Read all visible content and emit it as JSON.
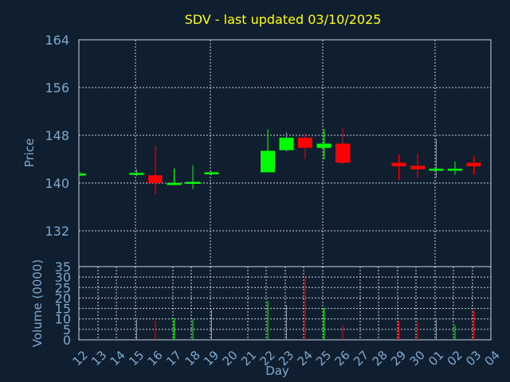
{
  "colors": {
    "background": "#0f1f30",
    "text": "#7fa8cc",
    "title": "#ffff00",
    "grid": "#c8d2dc",
    "up": "#00ff00",
    "down": "#ff0000"
  },
  "chart_data": {
    "type": "candlestick",
    "title": "SDV - last updated 03/10/2025",
    "xlabel": "Day",
    "grid": true,
    "x_ticks": [
      "12",
      "13",
      "14",
      "15",
      "16",
      "17",
      "18",
      "19",
      "20",
      "21",
      "22",
      "23",
      "24",
      "25",
      "26",
      "27",
      "28",
      "29",
      "30",
      "01",
      "02",
      "03",
      "04"
    ],
    "price": {
      "ylabel": "Price",
      "ylim": [
        126,
        164
      ],
      "yticks": [
        132,
        140,
        148,
        156,
        164
      ],
      "candles": [
        {
          "day": "12",
          "open": 141.3,
          "high": 141.8,
          "low": 141.2,
          "close": 141.6
        },
        {
          "day": "15",
          "open": 141.6,
          "high": 142.3,
          "low": 141.2,
          "close": 141.7
        },
        {
          "day": "16",
          "open": 141.3,
          "high": 146.2,
          "low": 138.0,
          "close": 140.0
        },
        {
          "day": "17",
          "open": 140.0,
          "high": 142.5,
          "low": 139.8,
          "close": 140.0
        },
        {
          "day": "18",
          "open": 140.0,
          "high": 143.0,
          "low": 139.0,
          "close": 140.2
        },
        {
          "day": "19",
          "open": 141.6,
          "high": 141.9,
          "low": 141.3,
          "close": 141.8
        },
        {
          "day": "22",
          "open": 141.8,
          "high": 149.0,
          "low": 141.8,
          "close": 145.4
        },
        {
          "day": "23",
          "open": 145.5,
          "high": 148.5,
          "low": 145.3,
          "close": 147.6
        },
        {
          "day": "24",
          "open": 147.6,
          "high": 148.3,
          "low": 144.0,
          "close": 145.9
        },
        {
          "day": "25",
          "open": 145.9,
          "high": 149.0,
          "low": 144.0,
          "close": 146.6
        },
        {
          "day": "26",
          "open": 146.6,
          "high": 149.2,
          "low": 143.2,
          "close": 143.4
        },
        {
          "day": "29",
          "open": 143.4,
          "high": 144.8,
          "low": 140.5,
          "close": 142.8
        },
        {
          "day": "30",
          "open": 142.9,
          "high": 145.0,
          "low": 140.9,
          "close": 142.3
        },
        {
          "day": "01",
          "open": 142.2,
          "high": 147.4,
          "low": 140.9,
          "close": 142.4
        },
        {
          "day": "02",
          "open": 142.2,
          "high": 143.6,
          "low": 141.4,
          "close": 142.4
        },
        {
          "day": "03",
          "open": 143.4,
          "high": 144.5,
          "low": 141.4,
          "close": 142.8
        }
      ]
    },
    "volume": {
      "ylabel": "Volume (0000)",
      "ylim": [
        0,
        35
      ],
      "yticks": [
        0,
        5,
        10,
        15,
        20,
        25,
        30,
        35
      ],
      "bars": [
        {
          "day": "15",
          "value": 9.5,
          "up": true
        },
        {
          "day": "16",
          "value": 9.0,
          "up": false
        },
        {
          "day": "17",
          "value": 10.0,
          "up": true
        },
        {
          "day": "18",
          "value": 10.0,
          "up": true
        },
        {
          "day": "19",
          "value": 14.5,
          "up": true
        },
        {
          "day": "22",
          "value": 18.5,
          "up": true
        },
        {
          "day": "23",
          "value": 16.5,
          "up": true
        },
        {
          "day": "24",
          "value": 30.0,
          "up": false
        },
        {
          "day": "25",
          "value": 15.0,
          "up": true
        },
        {
          "day": "26",
          "value": 7.0,
          "up": false
        },
        {
          "day": "29",
          "value": 9.0,
          "up": false
        },
        {
          "day": "30",
          "value": 8.5,
          "up": false
        },
        {
          "day": "01",
          "value": 9.5,
          "up": true
        },
        {
          "day": "02",
          "value": 7.0,
          "up": true
        },
        {
          "day": "03",
          "value": 14.0,
          "up": false
        }
      ]
    }
  }
}
